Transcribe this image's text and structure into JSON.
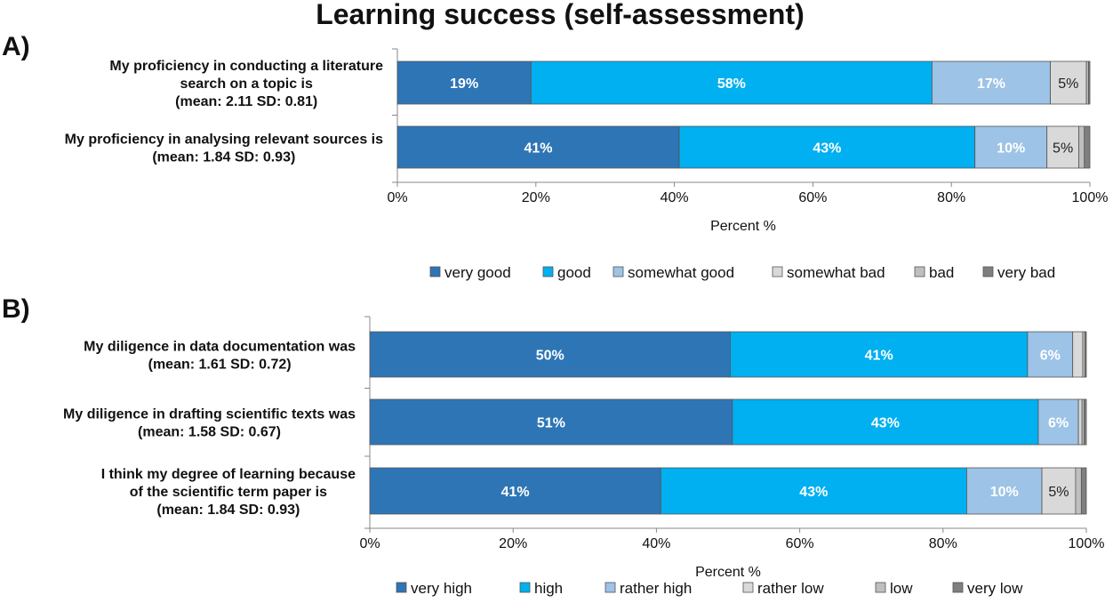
{
  "title": "Learning success (self-assessment)",
  "colors": [
    "#2e75b6",
    "#00b0f0",
    "#9dc3e6",
    "#d9d9d9",
    "#bfbfbf",
    "#7f7f7f"
  ],
  "chart_data": [
    {
      "type": "bar",
      "orientation": "horizontal",
      "stacked": true,
      "panel": "A)",
      "categories": [
        [
          "My proficiency in conducting a literature",
          "search on a topic is",
          "(mean: 2.11 SD: 0.81)"
        ],
        [
          "My proficiency in analysing relevant sources is",
          "(mean: 1.84 SD: 0.93)"
        ]
      ],
      "series": [
        {
          "name": "very good",
          "values": [
            19.3,
            40.7
          ],
          "labels": [
            "19%",
            "41%"
          ]
        },
        {
          "name": "good",
          "values": [
            57.9,
            42.7
          ],
          "labels": [
            "58%",
            "43%"
          ]
        },
        {
          "name": "somewhat good",
          "values": [
            17.1,
            10.4
          ],
          "labels": [
            "17%",
            "10%"
          ]
        },
        {
          "name": "somewhat bad",
          "values": [
            5.2,
            4.6
          ],
          "labels": [
            "5%",
            "5%"
          ]
        },
        {
          "name": "bad",
          "values": [
            0.3,
            0.8
          ],
          "labels": [
            "",
            ""
          ]
        },
        {
          "name": "very bad",
          "values": [
            0.2,
            0.8
          ],
          "labels": [
            "",
            ""
          ]
        }
      ],
      "xlabel": "Percent %",
      "xlim": [
        0,
        100
      ],
      "xticks": [
        "0%",
        "20%",
        "40%",
        "60%",
        "80%",
        "100%"
      ],
      "legend_position": "bottom"
    },
    {
      "type": "bar",
      "orientation": "horizontal",
      "stacked": true,
      "panel": "B)",
      "categories": [
        [
          "My diligence in data documentation was",
          "(mean: 1.61 SD: 0.72)"
        ],
        [
          "My diligence in drafting scientific texts was",
          "(mean: 1.58 SD: 0.67)"
        ],
        [
          "I think my degree of learning because",
          "of the scientific term paper is",
          "(mean: 1.84 SD: 0.93)"
        ]
      ],
      "series": [
        {
          "name": "very high",
          "values": [
            50.3,
            50.6,
            40.6
          ],
          "labels": [
            "50%",
            "51%",
            "41%"
          ]
        },
        {
          "name": "high",
          "values": [
            41.5,
            42.7,
            42.7
          ],
          "labels": [
            "41%",
            "43%",
            "43%"
          ]
        },
        {
          "name": "rather high",
          "values": [
            6.3,
            5.6,
            10.5
          ],
          "labels": [
            "6%",
            "6%",
            "10%"
          ]
        },
        {
          "name": "rather low",
          "values": [
            1.4,
            0.5,
            4.7
          ],
          "labels": [
            "",
            "",
            "5%"
          ]
        },
        {
          "name": "low",
          "values": [
            0.3,
            0.3,
            0.8
          ],
          "labels": [
            "",
            "",
            ""
          ]
        },
        {
          "name": "very low",
          "values": [
            0.2,
            0.3,
            0.7
          ],
          "labels": [
            "",
            "",
            ""
          ]
        }
      ],
      "xlabel": "Percent %",
      "xlim": [
        0,
        100
      ],
      "xticks": [
        "0%",
        "20%",
        "40%",
        "60%",
        "80%",
        "100%"
      ],
      "legend_position": "bottom"
    }
  ]
}
